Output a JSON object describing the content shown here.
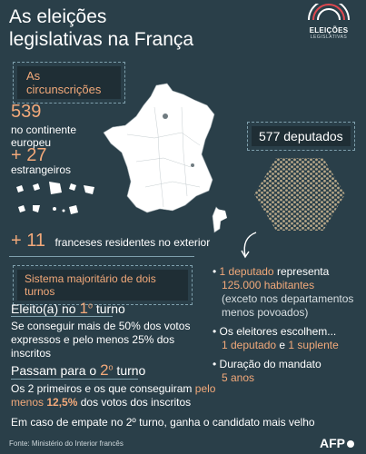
{
  "title": {
    "line1": "As eleições",
    "line2": "legislativas na França"
  },
  "logo": {
    "text": "ELEIÇÕES",
    "sub": "LEGISLATIVAS"
  },
  "circ": {
    "heading": "As circunscrições",
    "n1": "539",
    "n1_label1": "no continente",
    "n1_label2": "europeu",
    "n2": "+ 27",
    "n2_label": "estrangeiros",
    "n3": "+ 11",
    "n3_label": "franceses residentes no exterior"
  },
  "deputados": {
    "heading": "577 deputados"
  },
  "info": {
    "b1_a": "1 deputado",
    "b1_b": " representa",
    "b1_c": "125.000 habitantes",
    "b1_d": "(exceto nos departamentos",
    "b1_e": "menos povoados)",
    "b2_a": "Os eleitores escolhem...",
    "b2_b": "1 deputado",
    "b2_c": " e ",
    "b2_d": "1 suplente",
    "b3_a": "Duração do mandato",
    "b3_b": "5 anos"
  },
  "sistema": {
    "heading": "Sistema majoritário de dois turnos",
    "t1_a": "Eleito(a) no ",
    "t1_b": "1",
    "t1_c": "o",
    "t1_d": " turno",
    "t1_text1": "Se conseguir mais de 50% dos votos",
    "t1_text2": "expressos e pelo menos 25% dos inscritos",
    "t2_a": "Passam para o ",
    "t2_b": "2",
    "t2_c": "o",
    "t2_d": " turno",
    "t2_text1a": "Os 2 primeiros e os que conseguiram ",
    "t2_text1b": "pelo",
    "t2_text2a": "menos ",
    "t2_text2b": "12,5%",
    "t2_text2c": " dos votos dos inscritos",
    "empate": "Em caso de empate no 2º turno, ganha o candidato mais velho"
  },
  "footer": {
    "source": "Fonte: Ministério do Interior francês",
    "agency": "AFP"
  },
  "colors": {
    "bg": "#2a3f49",
    "accent": "#f2a97a",
    "hex": "#b9a98a"
  }
}
